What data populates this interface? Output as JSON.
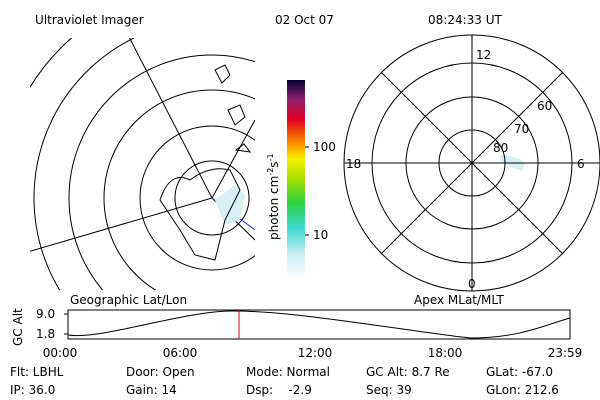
{
  "header": {
    "title": "Ultraviolet Imager",
    "date": "02 Oct 07",
    "time": "08:24:33 UT"
  },
  "colorbar": {
    "label": "photon cm",
    "exp1": "-2",
    "unit2": "s",
    "exp2": "-1",
    "ticks": [
      "100",
      "10"
    ]
  },
  "left_panel": {
    "label": "Geographic Lat/Lon"
  },
  "right_panel": {
    "label": "Apex MLat/MLT",
    "mlt_labels": [
      "12",
      "18",
      "6",
      "0"
    ],
    "lat_labels": [
      "80",
      "70",
      "60"
    ]
  },
  "altitude_plot": {
    "y_label": "GC Alt",
    "y_ticks": [
      "9.0",
      "1.8"
    ],
    "x_ticks": [
      "00:00",
      "06:00",
      "12:00",
      "18:00",
      "23:59"
    ]
  },
  "footer": {
    "rows": [
      [
        "Flt: LBHL",
        "Door: Open",
        "Mode: Normal",
        "GC Alt: 8.7 Re",
        "GLat: -67.0"
      ],
      [
        "IP: 36.0",
        "Gain: 14",
        "Dsp:    -2.9",
        "Seq: 39",
        "GLon: 212.6"
      ]
    ]
  }
}
